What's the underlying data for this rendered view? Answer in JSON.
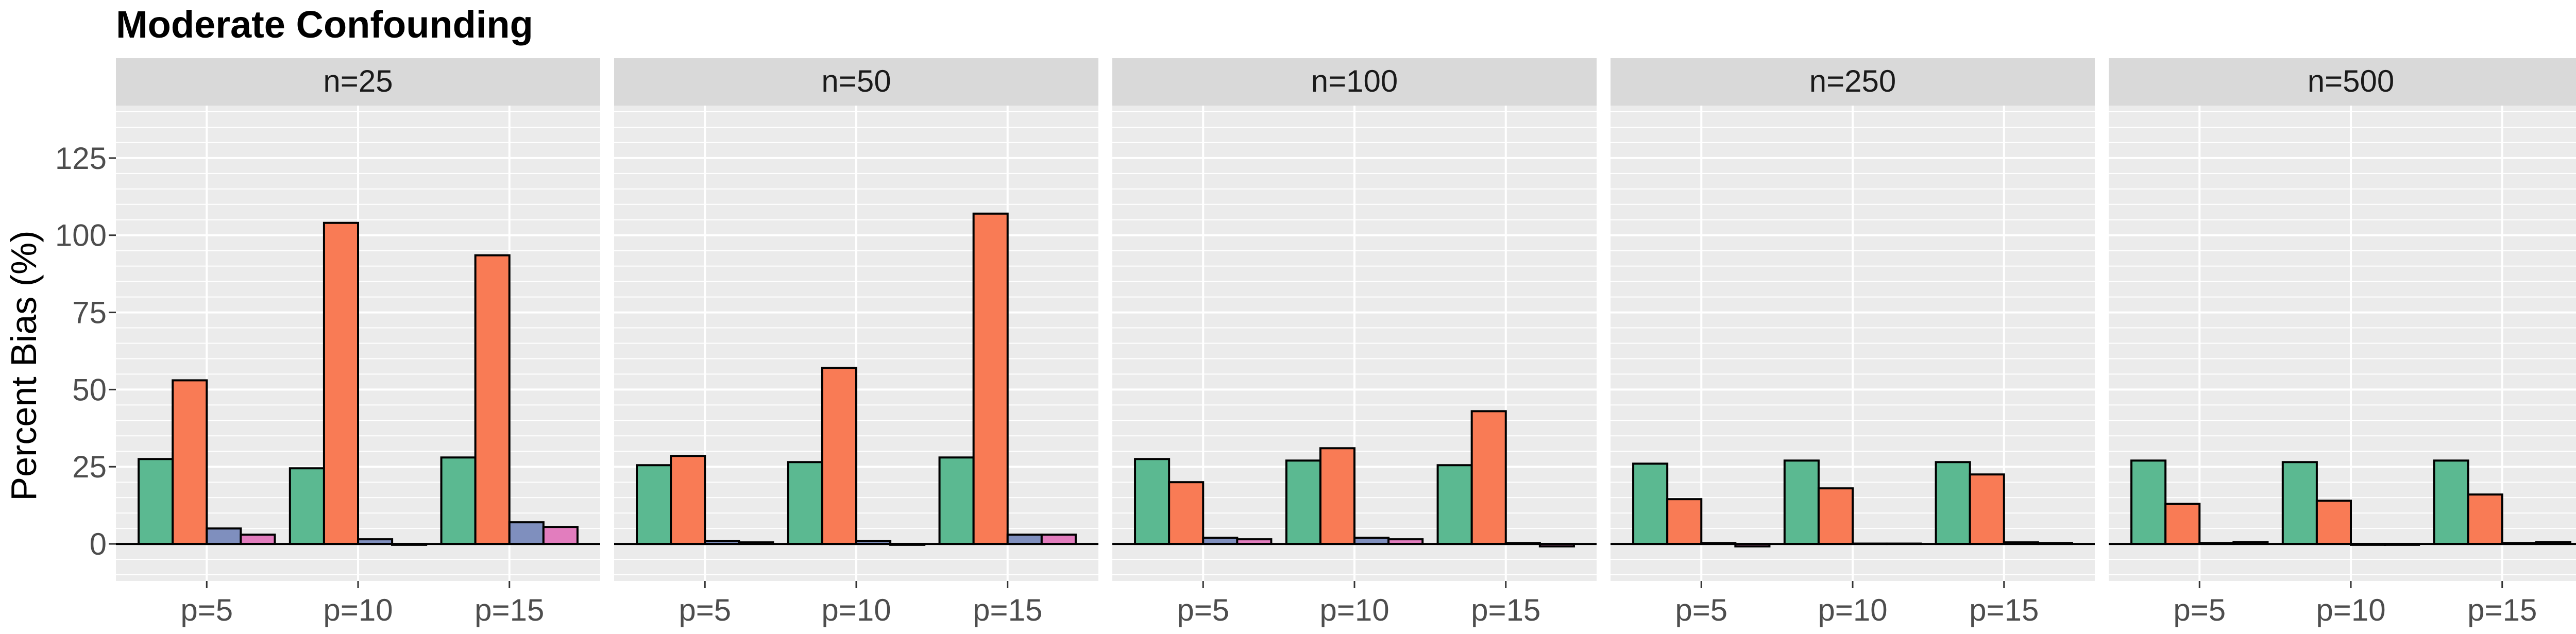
{
  "chart_data": {
    "type": "bar",
    "title": "Moderate Confounding",
    "ylabel": "Percent Bias (%)",
    "xlabel": "",
    "ylim": [
      -12,
      142
    ],
    "yticks": [
      0,
      25,
      50,
      75,
      100,
      125
    ],
    "ytick_labels": [
      "0",
      "25",
      "50",
      "75",
      "100",
      "125"
    ],
    "grid": true,
    "legend": "none",
    "categories": [
      "p=5",
      "p=10",
      "p=15"
    ],
    "series_colors": [
      "#5BB991",
      "#F97B55",
      "#7F8FBE",
      "#E27DBE"
    ],
    "panels": [
      {
        "label": "n=25",
        "series": [
          {
            "values": [
              27.5,
              24.5,
              28.0
            ]
          },
          {
            "values": [
              53.0,
              104.0,
              93.5
            ]
          },
          {
            "values": [
              5.0,
              1.5,
              7.0
            ]
          },
          {
            "values": [
              3.0,
              -0.3,
              5.5
            ]
          }
        ]
      },
      {
        "label": "n=50",
        "series": [
          {
            "values": [
              25.5,
              26.5,
              28.0
            ]
          },
          {
            "values": [
              28.5,
              57.0,
              107.0
            ]
          },
          {
            "values": [
              1.0,
              1.0,
              3.0
            ]
          },
          {
            "values": [
              0.5,
              -0.3,
              3.0
            ]
          }
        ]
      },
      {
        "label": "n=100",
        "series": [
          {
            "values": [
              27.5,
              27.0,
              25.5
            ]
          },
          {
            "values": [
              20.0,
              31.0,
              43.0
            ]
          },
          {
            "values": [
              2.0,
              2.0,
              0.3
            ]
          },
          {
            "values": [
              1.5,
              1.5,
              -0.8
            ]
          }
        ]
      },
      {
        "label": "n=250",
        "series": [
          {
            "values": [
              26.0,
              27.0,
              26.5
            ]
          },
          {
            "values": [
              14.5,
              18.0,
              22.5
            ]
          },
          {
            "values": [
              0.3,
              0.1,
              0.5
            ]
          },
          {
            "values": [
              -0.8,
              0.1,
              0.3
            ]
          }
        ]
      },
      {
        "label": "n=500",
        "series": [
          {
            "values": [
              27.0,
              26.5,
              27.0
            ]
          },
          {
            "values": [
              13.0,
              14.0,
              16.0
            ]
          },
          {
            "values": [
              0.3,
              -0.3,
              0.3
            ]
          },
          {
            "values": [
              0.6,
              -0.3,
              0.6
            ]
          }
        ]
      }
    ]
  }
}
